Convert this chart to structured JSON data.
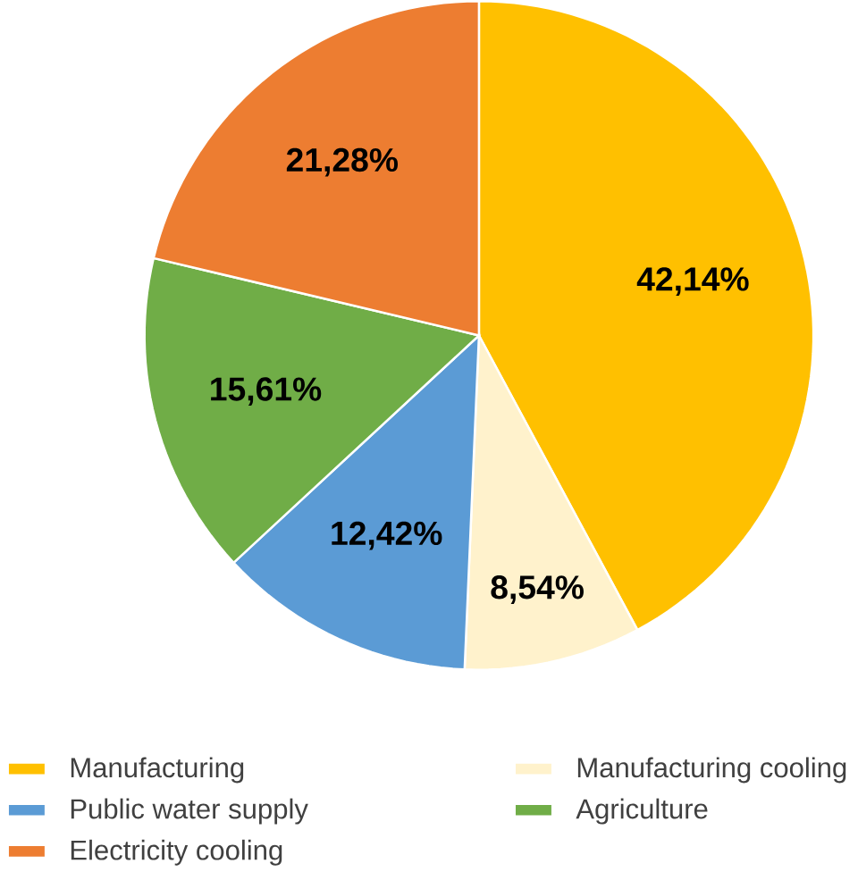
{
  "chart_data": {
    "type": "pie",
    "categories": [
      "Manufacturing",
      "Manufacturing cooling",
      "Public water supply",
      "Agriculture",
      "Electricity cooling"
    ],
    "values": [
      42.14,
      8.54,
      12.42,
      15.61,
      21.28
    ],
    "value_labels": [
      "42,14%",
      "8,54%",
      "12,42%",
      "15,61%",
      "21,28%"
    ],
    "colors": [
      "#ffc000",
      "#fff2cc",
      "#5b9bd5",
      "#70ad47",
      "#ed7d31"
    ],
    "legend": "bottom"
  }
}
